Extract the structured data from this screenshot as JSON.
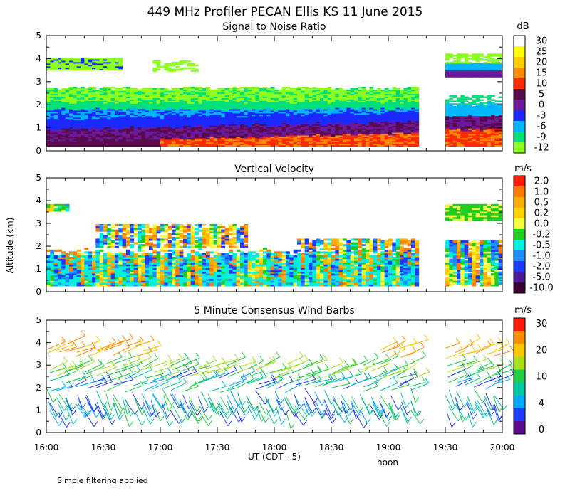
{
  "title": "449 MHz Profiler PECAN Ellis KS 11 June 2015",
  "ylabel": "Altitude (km)",
  "xlabel": "UT  (CDT - 5)",
  "noon_label": "noon",
  "footnote": "Simple filtering applied",
  "x_ticks": [
    "16:00",
    "16:30",
    "17:00",
    "17:30",
    "18:00",
    "18:30",
    "19:00",
    "19:30",
    "20:00"
  ],
  "y_ticks": [
    "0",
    "1",
    "2",
    "3",
    "4",
    "5"
  ],
  "panels": [
    {
      "title": "Signal to Noise Ratio",
      "unit": "dB",
      "colorbar": {
        "labels": [
          "30",
          "25",
          "20",
          "15",
          "10",
          "5",
          "0",
          "-3",
          "-6",
          "-9",
          "-12"
        ],
        "colors": [
          "#ffffff",
          "#ffff00",
          "#ffcc00",
          "#ff8c00",
          "#ff2a00",
          "#5a0a4a",
          "#6a1a9a",
          "#1a2aff",
          "#00b4ff",
          "#00e07a",
          "#8cff20"
        ]
      }
    },
    {
      "title": "Vertical Velocity",
      "unit": "m/s",
      "colorbar": {
        "labels": [
          "2.0",
          "1.0",
          "0.5",
          "0.2",
          "0.0",
          "-0.2",
          "-0.5",
          "-1.0",
          "-2.0",
          "-5.0",
          "-10.0"
        ],
        "colors": [
          "#ff1a00",
          "#ff7a00",
          "#ffae00",
          "#ffd000",
          "#f2ff40",
          "#22cc22",
          "#00f0e0",
          "#1e8cff",
          "#1a3aff",
          "#4a1a9a",
          "#3a0030"
        ]
      }
    },
    {
      "title": "5 Minute Consensus Wind Barbs",
      "unit": "m/s",
      "colorbar": {
        "labels": [
          "30",
          "20",
          "10",
          "4",
          "0"
        ],
        "colors": [
          "#ff1a00",
          "#ff8c00",
          "#ffc400",
          "#a6e01a",
          "#22cc44",
          "#00c8a0",
          "#00aaff",
          "#1e3cff",
          "#5a0a8a"
        ]
      }
    }
  ],
  "chart_data": [
    {
      "type": "heatmap",
      "title": "Signal to Noise Ratio",
      "units": "dB",
      "x_range_utc": [
        "16:00",
        "20:00"
      ],
      "y_range_km": [
        0,
        5
      ],
      "data_gap_utc": [
        "19:15",
        "19:30"
      ],
      "layers": [
        {
          "alt_km": [
            0.2,
            0.5
          ],
          "time_utc": [
            "16:00",
            "19:15"
          ],
          "snr_db_start": 5,
          "snr_db_end": 10
        },
        {
          "alt_km": [
            0.5,
            1.2
          ],
          "time_utc": [
            "16:00",
            "19:15"
          ],
          "snr_db": 0
        },
        {
          "alt_km": [
            1.2,
            1.6
          ],
          "time_utc": [
            "16:00",
            "19:15"
          ],
          "snr_db": -3
        },
        {
          "alt_km": [
            1.6,
            2.0
          ],
          "time_utc": [
            "16:00",
            "19:15"
          ],
          "snr_db": -6
        },
        {
          "alt_km": [
            2.0,
            2.6
          ],
          "time_utc": [
            "16:00",
            "19:15"
          ],
          "snr_db": -9
        },
        {
          "alt_km": [
            3.5,
            4.0
          ],
          "time_utc": [
            "16:00",
            "16:40"
          ],
          "snr_db": -12
        },
        {
          "alt_km": [
            0.2,
            1.5
          ],
          "time_utc": [
            "19:30",
            "20:00"
          ],
          "snr_db": 10
        },
        {
          "alt_km": [
            3.2,
            4.0
          ],
          "time_utc": [
            "19:30",
            "20:00"
          ],
          "snr_db": -3
        }
      ]
    },
    {
      "type": "heatmap",
      "title": "Vertical Velocity",
      "units": "m/s",
      "x_range_utc": [
        "16:00",
        "20:00"
      ],
      "y_range_km": [
        0,
        5
      ],
      "data_gap_utc": [
        "19:15",
        "19:30"
      ],
      "layers": [
        {
          "alt_km": [
            0.2,
            1.8
          ],
          "time_utc": [
            "16:00",
            "19:15"
          ],
          "w_ms": [
            -1.0,
            0.5
          ]
        },
        {
          "alt_km": [
            2.0,
            3.0
          ],
          "time_utc": [
            "16:25",
            "17:45"
          ],
          "w_ms": [
            0.0,
            0.5
          ]
        },
        {
          "alt_km": [
            3.5,
            3.8
          ],
          "time_utc": [
            "16:00",
            "16:10"
          ],
          "w_ms": 0.2
        },
        {
          "alt_km": [
            0.2,
            2.2
          ],
          "time_utc": [
            "19:30",
            "20:00"
          ],
          "w_ms": [
            -2.0,
            1.0
          ]
        },
        {
          "alt_km": [
            3.1,
            3.8
          ],
          "time_utc": [
            "19:30",
            "20:00"
          ],
          "w_ms": -0.2
        }
      ]
    },
    {
      "type": "scatter",
      "subtype": "wind_barbs",
      "title": "5 Minute Consensus Wind Barbs",
      "units": "m/s",
      "interval_min": 5,
      "x_range_utc": [
        "16:00",
        "20:00"
      ],
      "y_range_km": [
        0,
        5
      ],
      "levels": [
        {
          "alt_km": 1.1,
          "speed_ms": 8
        },
        {
          "alt_km": 1.5,
          "speed_ms": 7
        },
        {
          "alt_km": 2.0,
          "speed_ms": 9
        },
        {
          "alt_km": 2.6,
          "speed_ms": 11
        },
        {
          "alt_km": 3.5,
          "speed_ms": 16
        }
      ]
    }
  ]
}
